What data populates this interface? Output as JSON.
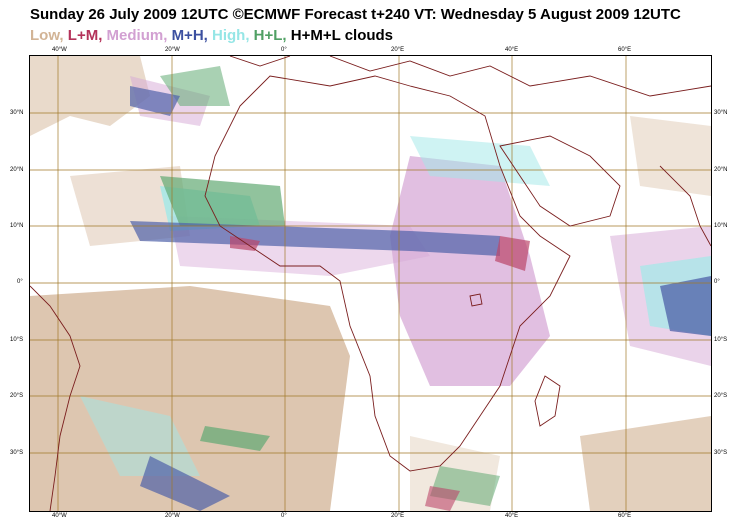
{
  "title": "Sunday 26 July 2009 12UTC ©ECMWF Forecast t+240 VT: Wednesday 5 August 2009 12UTC",
  "legend": [
    {
      "label": "Low,",
      "color": "#d2b496"
    },
    {
      "label": "L+M,",
      "color": "#b4325a"
    },
    {
      "label": "Medium,",
      "color": "#d2a0d2"
    },
    {
      "label": "M+H,",
      "color": "#3c50a0"
    },
    {
      "label": "High,",
      "color": "#96e6e6"
    },
    {
      "label": "H+L,",
      "color": "#50a064"
    },
    {
      "label": "H+M+L clouds",
      "color": "#000000"
    }
  ],
  "top_ticks": [
    "40°W",
    "20°W",
    "0°",
    "20°E",
    "40°E",
    "60°E"
  ],
  "bottom_ticks": [
    "40°W",
    "20°W",
    "0°",
    "20°E",
    "40°E",
    "60°E"
  ],
  "left_ticks": [
    "30°N",
    "20°N",
    "10°N",
    "0°",
    "10°S",
    "20°S",
    "30°S"
  ],
  "right_ticks": [
    "30°N",
    "20°N",
    "10°N",
    "0°",
    "10°S",
    "20°S",
    "30°S"
  ]
}
